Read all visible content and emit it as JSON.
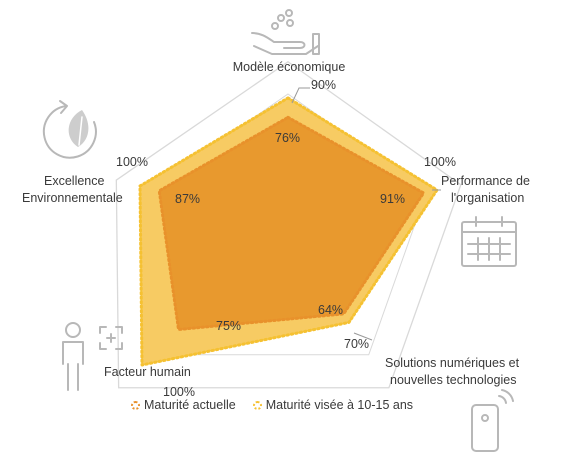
{
  "chart_data": {
    "type": "radar",
    "axes": [
      {
        "label": "Modèle économique"
      },
      {
        "label": "Performance de l'organisation"
      },
      {
        "label": "Solutions numériques et nouvelles technologies"
      },
      {
        "label": "Facteur humain"
      },
      {
        "label": "Excellence Environnementale"
      }
    ],
    "series": [
      {
        "name": "Maturité actuelle",
        "values": [
          76,
          91,
          64,
          75,
          87
        ],
        "color": "#E8912B",
        "fill": "#E8992E"
      },
      {
        "name": "Maturité visée à 10-15 ans",
        "values": [
          90,
          100,
          70,
          100,
          100
        ],
        "color": "#F5C132",
        "fill": "#F7CB63"
      }
    ],
    "range": [
      0,
      100
    ],
    "grid": true,
    "legend_position": "bottom"
  },
  "labels": {
    "axis0": "Modèle économique",
    "axis1_line1": "Performance de",
    "axis1_line2": "l'organisation",
    "axis2_line1": "Solutions numériques et",
    "axis2_line2": "nouvelles technologies",
    "axis3": "Facteur humain",
    "axis4_line1": "Excellence",
    "axis4_line2": "Environnementale",
    "s1_v0": "76%",
    "s1_v1": "91%",
    "s1_v2": "64%",
    "s1_v3": "75%",
    "s1_v4": "87%",
    "s2_v0": "90%",
    "s2_v1": "100%",
    "s2_v2": "70%",
    "s2_v3": "100%",
    "s2_v4": "100%"
  },
  "legend": {
    "current": "Maturité actuelle",
    "target": "Maturité visée à 10-15 ans"
  },
  "icons": [
    "hand-coins-icon",
    "recycle-leaf-icon",
    "calendar-icon",
    "person-scan-icon",
    "phone-signal-icon"
  ]
}
